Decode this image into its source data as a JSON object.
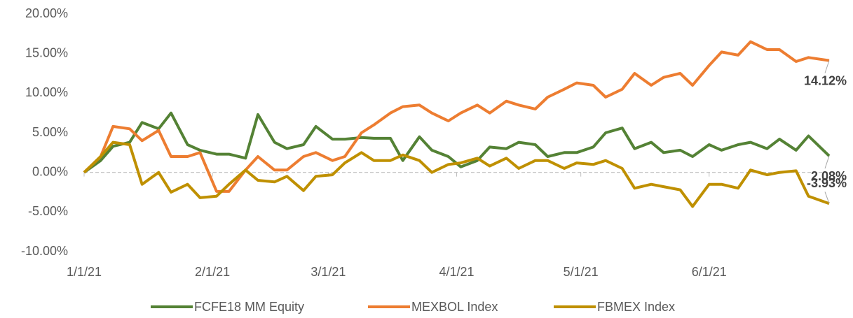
{
  "chart_data": {
    "type": "line",
    "x": [
      "1/1/21",
      "1/5/21",
      "1/8/21",
      "1/12/21",
      "1/15/21",
      "1/19/21",
      "1/22/21",
      "1/26/21",
      "1/29/21",
      "2/2/21",
      "2/5/21",
      "2/9/21",
      "2/12/21",
      "2/16/21",
      "2/19/21",
      "2/23/21",
      "2/26/21",
      "3/2/21",
      "3/5/21",
      "3/9/21",
      "3/12/21",
      "3/16/21",
      "3/19/21",
      "3/23/21",
      "3/26/21",
      "3/30/21",
      "4/2/21",
      "4/6/21",
      "4/9/21",
      "4/13/21",
      "4/16/21",
      "4/20/21",
      "4/23/21",
      "4/27/21",
      "4/30/21",
      "5/4/21",
      "5/7/21",
      "5/11/21",
      "5/14/21",
      "5/18/21",
      "5/21/21",
      "5/25/21",
      "5/28/21",
      "6/1/21",
      "6/4/21",
      "6/8/21",
      "6/11/21",
      "6/15/21",
      "6/18/21",
      "6/22/21",
      "6/25/21",
      "6/30/21"
    ],
    "series": [
      {
        "name": "FCFE18 MM Equity",
        "color": "#548235",
        "end_label": "2.08%",
        "values": [
          0,
          1.5,
          3.3,
          3.8,
          6.3,
          5.5,
          7.5,
          3.5,
          2.8,
          2.3,
          2.3,
          1.8,
          7.3,
          3.8,
          3.0,
          3.5,
          5.8,
          4.2,
          4.2,
          4.4,
          4.3,
          4.3,
          1.5,
          4.5,
          2.8,
          2.0,
          0.7,
          1.5,
          3.2,
          3.0,
          3.8,
          3.5,
          2.0,
          2.5,
          2.5,
          3.2,
          5.0,
          5.6,
          3.0,
          3.8,
          2.5,
          2.8,
          2.0,
          3.5,
          2.8,
          3.5,
          3.8,
          3.0,
          4.2,
          2.8,
          4.6,
          2.08
        ]
      },
      {
        "name": "MEXBOL Index",
        "color": "#ed7d31",
        "end_label": "14.12%",
        "values": [
          0,
          2,
          5.8,
          5.5,
          4,
          5.3,
          2,
          2,
          2.5,
          -2.4,
          -2.4,
          0.3,
          2,
          0.3,
          0.3,
          2,
          2.5,
          1.5,
          2,
          5,
          6,
          7.5,
          8.3,
          8.5,
          7.5,
          6.5,
          7.5,
          8.5,
          7.5,
          9,
          8.5,
          8,
          9.5,
          10.5,
          11.3,
          11,
          9.5,
          10.5,
          12.5,
          11,
          12,
          12.5,
          11,
          13.5,
          15.2,
          14.8,
          16.5,
          15.5,
          15.5,
          14,
          14.5,
          14.12
        ]
      },
      {
        "name": "FBMEX Index",
        "color": "#bf9000",
        "end_label": "-3.93%",
        "values": [
          0,
          2,
          3.8,
          3.5,
          -1.5,
          0,
          -2.5,
          -1.5,
          -3.2,
          -3,
          -1.5,
          0.3,
          -1,
          -1.2,
          -0.5,
          -2.3,
          -0.5,
          -0.3,
          1.2,
          2.5,
          1.5,
          1.5,
          2.2,
          1.5,
          0,
          1,
          1.2,
          1.8,
          0.8,
          1.8,
          0.5,
          1.5,
          1.5,
          0.5,
          1.2,
          1,
          1.5,
          0.5,
          -2,
          -1.5,
          -1.8,
          -2.2,
          -4.3,
          -1.5,
          -1.5,
          -2,
          0.3,
          -0.3,
          0,
          0.2,
          -3,
          -3.93
        ]
      }
    ],
    "xlim": [
      "1/1/21",
      "6/30/21"
    ],
    "xticks": [
      "1/1/21",
      "2/1/21",
      "3/1/21",
      "4/1/21",
      "5/1/21",
      "6/1/21"
    ],
    "ylim": [
      -10,
      20
    ],
    "yticks": [
      {
        "value": -10,
        "label": "-10.00%"
      },
      {
        "value": -5,
        "label": "-5.00%"
      },
      {
        "value": 0,
        "label": "0.00%"
      },
      {
        "value": 5,
        "label": "5.00%"
      },
      {
        "value": 10,
        "label": "10.00%"
      },
      {
        "value": 15,
        "label": "15.00%"
      },
      {
        "value": 20,
        "label": "20.00%"
      }
    ],
    "legend": "bottom"
  }
}
